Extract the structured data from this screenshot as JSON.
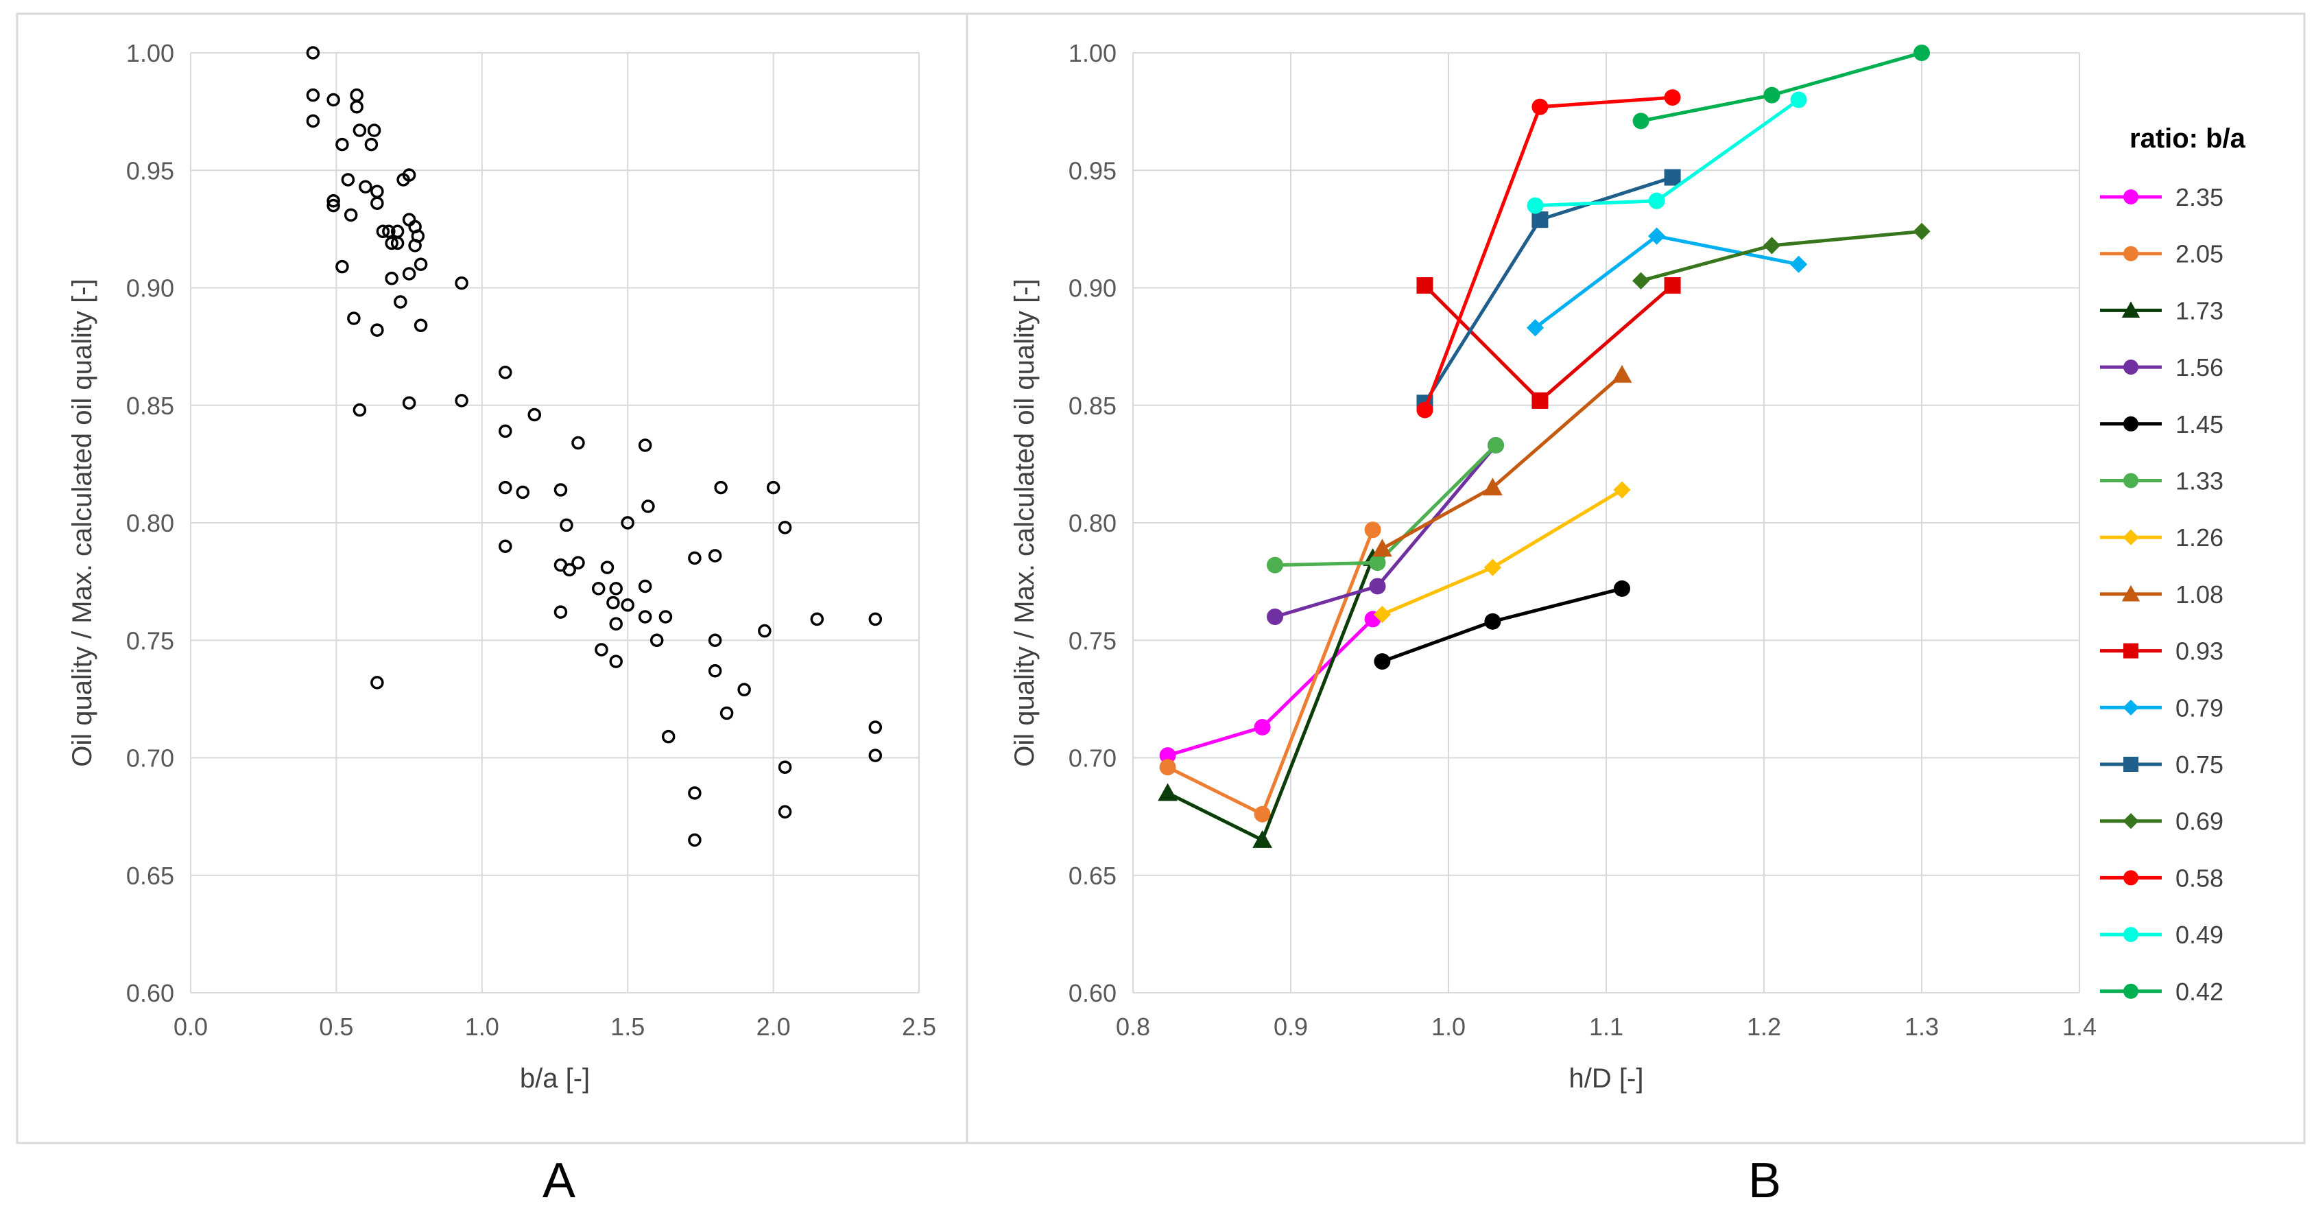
{
  "chart_data": [
    {
      "type": "scatter",
      "panel_label": "A",
      "xlabel": "b/a [-]",
      "ylabel": "Oil quality / Max. calculated oil quality [-]",
      "xlim": [
        0,
        2.5
      ],
      "ylim": [
        0.6,
        1.0
      ],
      "xticks": [
        "0.0",
        "0.5",
        "1.0",
        "1.5",
        "2.0",
        "2.5"
      ],
      "yticks": [
        "0.60",
        "0.65",
        "0.70",
        "0.75",
        "0.80",
        "0.85",
        "0.90",
        "0.95",
        "1.00"
      ],
      "grid": true,
      "points": [
        [
          0.42,
          1.0
        ],
        [
          0.42,
          0.982
        ],
        [
          0.42,
          0.971
        ],
        [
          0.49,
          0.98
        ],
        [
          0.49,
          0.937
        ],
        [
          0.49,
          0.935
        ],
        [
          0.52,
          0.961
        ],
        [
          0.52,
          0.909
        ],
        [
          0.54,
          0.946
        ],
        [
          0.55,
          0.931
        ],
        [
          0.56,
          0.887
        ],
        [
          0.57,
          0.982
        ],
        [
          0.57,
          0.977
        ],
        [
          0.58,
          0.848
        ],
        [
          0.58,
          0.967
        ],
        [
          0.6,
          0.943
        ],
        [
          0.62,
          0.961
        ],
        [
          0.63,
          0.967
        ],
        [
          0.64,
          0.941
        ],
        [
          0.64,
          0.936
        ],
        [
          0.64,
          0.882
        ],
        [
          0.64,
          0.732
        ],
        [
          0.66,
          0.924
        ],
        [
          0.68,
          0.924
        ],
        [
          0.69,
          0.919
        ],
        [
          0.69,
          0.904
        ],
        [
          0.71,
          0.924
        ],
        [
          0.71,
          0.919
        ],
        [
          0.72,
          0.894
        ],
        [
          0.73,
          0.946
        ],
        [
          0.75,
          0.948
        ],
        [
          0.75,
          0.929
        ],
        [
          0.75,
          0.906
        ],
        [
          0.75,
          0.851
        ],
        [
          0.77,
          0.926
        ],
        [
          0.77,
          0.918
        ],
        [
          0.78,
          0.922
        ],
        [
          0.79,
          0.91
        ],
        [
          0.79,
          0.884
        ],
        [
          0.93,
          0.902
        ],
        [
          0.93,
          0.852
        ],
        [
          1.08,
          0.864
        ],
        [
          1.08,
          0.839
        ],
        [
          1.08,
          0.815
        ],
        [
          1.08,
          0.79
        ],
        [
          1.14,
          0.813
        ],
        [
          1.18,
          0.846
        ],
        [
          1.27,
          0.814
        ],
        [
          1.27,
          0.782
        ],
        [
          1.27,
          0.762
        ],
        [
          1.29,
          0.799
        ],
        [
          1.3,
          0.78
        ],
        [
          1.33,
          0.834
        ],
        [
          1.33,
          0.783
        ],
        [
          1.4,
          0.772
        ],
        [
          1.41,
          0.746
        ],
        [
          1.43,
          0.781
        ],
        [
          1.45,
          0.766
        ],
        [
          1.46,
          0.772
        ],
        [
          1.46,
          0.757
        ],
        [
          1.46,
          0.741
        ],
        [
          1.5,
          0.765
        ],
        [
          1.5,
          0.8
        ],
        [
          1.56,
          0.833
        ],
        [
          1.56,
          0.773
        ],
        [
          1.56,
          0.76
        ],
        [
          1.57,
          0.807
        ],
        [
          1.6,
          0.75
        ],
        [
          1.63,
          0.76
        ],
        [
          1.64,
          0.709
        ],
        [
          1.73,
          0.785
        ],
        [
          1.73,
          0.685
        ],
        [
          1.73,
          0.665
        ],
        [
          1.8,
          0.786
        ],
        [
          1.8,
          0.75
        ],
        [
          1.8,
          0.737
        ],
        [
          1.82,
          0.815
        ],
        [
          1.84,
          0.719
        ],
        [
          1.9,
          0.729
        ],
        [
          1.97,
          0.754
        ],
        [
          2.0,
          0.815
        ],
        [
          2.04,
          0.798
        ],
        [
          2.04,
          0.696
        ],
        [
          2.04,
          0.677
        ],
        [
          2.15,
          0.759
        ],
        [
          2.35,
          0.759
        ],
        [
          2.35,
          0.713
        ],
        [
          2.35,
          0.701
        ]
      ]
    },
    {
      "type": "line",
      "panel_label": "B",
      "xlabel": "h/D [-]",
      "ylabel": "Oil quality / Max. calculated oil quality [-]",
      "xlim": [
        0.8,
        1.4
      ],
      "ylim": [
        0.6,
        1.0
      ],
      "xticks": [
        "0.8",
        "0.9",
        "1.0",
        "1.1",
        "1.2",
        "1.3",
        "1.4"
      ],
      "yticks": [
        "0.60",
        "0.65",
        "0.70",
        "0.75",
        "0.80",
        "0.85",
        "0.90",
        "0.95",
        "1.00"
      ],
      "grid": true,
      "legend_title": "ratio: b/a",
      "legend_position": "right",
      "series": [
        {
          "name": "2.35",
          "color": "#ff00ff",
          "marker": "circle",
          "x": [
            0.822,
            0.882,
            0.952
          ],
          "y": [
            0.701,
            0.713,
            0.759
          ]
        },
        {
          "name": "2.05",
          "color": "#ed7d31",
          "marker": "circle",
          "x": [
            0.822,
            0.882,
            0.952
          ],
          "y": [
            0.696,
            0.676,
            0.797
          ]
        },
        {
          "name": "1.73",
          "color": "#0b3d0b",
          "marker": "triangle",
          "x": [
            0.822,
            0.882,
            0.952
          ],
          "y": [
            0.685,
            0.665,
            0.785
          ]
        },
        {
          "name": "1.56",
          "color": "#7030a0",
          "marker": "circle",
          "x": [
            0.89,
            0.955,
            1.03
          ],
          "y": [
            0.76,
            0.773,
            0.833
          ]
        },
        {
          "name": "1.45",
          "color": "#000000",
          "marker": "circle",
          "x": [
            0.958,
            1.028,
            1.11
          ],
          "y": [
            0.741,
            0.758,
            0.772
          ]
        },
        {
          "name": "1.33",
          "color": "#4caf50",
          "marker": "circle",
          "x": [
            0.89,
            0.955,
            1.03
          ],
          "y": [
            0.782,
            0.783,
            0.833
          ]
        },
        {
          "name": "1.26",
          "color": "#ffc000",
          "marker": "diamond",
          "x": [
            0.958,
            1.028,
            1.11
          ],
          "y": [
            0.761,
            0.781,
            0.814
          ]
        },
        {
          "name": "1.08",
          "color": "#c55a11",
          "marker": "triangle",
          "x": [
            0.958,
            1.028,
            1.11
          ],
          "y": [
            0.789,
            0.815,
            0.863
          ]
        },
        {
          "name": "0.93",
          "color": "#e00000",
          "marker": "square",
          "x": [
            0.985,
            1.058,
            1.142
          ],
          "y": [
            0.901,
            0.852,
            0.901
          ]
        },
        {
          "name": "0.79",
          "color": "#00b0f0",
          "marker": "diamond",
          "x": [
            1.055,
            1.132,
            1.222
          ],
          "y": [
            0.883,
            0.922,
            0.91
          ]
        },
        {
          "name": "0.75",
          "color": "#1f5f8b",
          "marker": "square",
          "x": [
            0.985,
            1.058,
            1.142
          ],
          "y": [
            0.851,
            0.929,
            0.947
          ]
        },
        {
          "name": "0.69",
          "color": "#38761d",
          "marker": "diamond",
          "x": [
            1.122,
            1.205,
            1.3
          ],
          "y": [
            0.903,
            0.918,
            0.924
          ]
        },
        {
          "name": "0.58",
          "color": "#ff0000",
          "marker": "circle",
          "x": [
            0.985,
            1.058,
            1.142
          ],
          "y": [
            0.848,
            0.977,
            0.981
          ]
        },
        {
          "name": "0.49",
          "color": "#00ffe0",
          "marker": "circle",
          "x": [
            1.055,
            1.132,
            1.222
          ],
          "y": [
            0.935,
            0.937,
            0.98
          ]
        },
        {
          "name": "0.42",
          "color": "#00b050",
          "marker": "circle",
          "x": [
            1.122,
            1.205,
            1.3
          ],
          "y": [
            0.971,
            0.982,
            1.0
          ]
        }
      ]
    }
  ]
}
